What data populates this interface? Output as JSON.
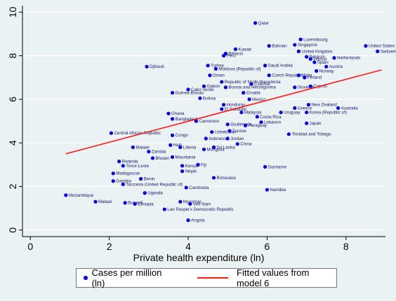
{
  "chart_data": {
    "type": "scatter",
    "xlabel": "Private health expenditure (ln)",
    "ylabel": "",
    "xlim": [
      -0.2,
      9.0
    ],
    "ylim": [
      -0.3,
      10.3
    ],
    "x_ticks": [
      0,
      2,
      4,
      6,
      8
    ],
    "y_ticks": [
      0,
      2,
      4,
      6,
      8,
      10
    ],
    "grid": "horizontal",
    "legend_position": "bottom",
    "fit_line": {
      "name": "Fitted values from model 6",
      "color": "#ff1a1a",
      "x": [
        0.9,
        8.9
      ],
      "y": [
        3.5,
        7.35
      ]
    },
    "series": [
      {
        "name": "Cases per million (ln)",
        "color": "#0000ee",
        "points": [
          {
            "label": "Qatar",
            "x": 5.7,
            "y": 9.5
          },
          {
            "label": "Luxembourg",
            "x": 6.85,
            "y": 8.75
          },
          {
            "label": "Singapore",
            "x": 6.7,
            "y": 8.5
          },
          {
            "label": "Bahrain",
            "x": 6.05,
            "y": 8.45
          },
          {
            "label": "United States",
            "x": 8.5,
            "y": 8.45
          },
          {
            "label": "Switzerland",
            "x": 8.8,
            "y": 8.2
          },
          {
            "label": "Kuwait",
            "x": 5.2,
            "y": 8.3
          },
          {
            "label": "United Kingdom",
            "x": 6.8,
            "y": 8.2
          },
          {
            "label": "Belarus",
            "x": 4.95,
            "y": 8.1
          },
          {
            "label": "Peru",
            "x": 4.9,
            "y": 8.0
          },
          {
            "label": "Netherlands",
            "x": 7.7,
            "y": 7.9
          },
          {
            "label": "France",
            "x": 7.1,
            "y": 7.85
          },
          {
            "label": "Belgium",
            "x": 7.0,
            "y": 7.95
          },
          {
            "label": "Spain",
            "x": 7.2,
            "y": 7.7
          },
          {
            "label": "Austria",
            "x": 7.5,
            "y": 7.5
          },
          {
            "label": "Norway",
            "x": 7.25,
            "y": 7.3
          },
          {
            "label": "Djibouti",
            "x": 2.95,
            "y": 7.5
          },
          {
            "label": "Turkey",
            "x": 4.5,
            "y": 7.55
          },
          {
            "label": "Saudi Arabia",
            "x": 5.95,
            "y": 7.55
          },
          {
            "label": "Moldova (Republic of)",
            "x": 4.7,
            "y": 7.4
          },
          {
            "label": "Malta",
            "x": 6.8,
            "y": 7.1
          },
          {
            "label": "Oman",
            "x": 4.55,
            "y": 7.1
          },
          {
            "label": "Finland",
            "x": 6.95,
            "y": 7.0
          },
          {
            "label": "Czech Republic",
            "x": 6.05,
            "y": 7.1
          },
          {
            "label": "Republic of North Macedonia",
            "x": 4.85,
            "y": 6.8
          },
          {
            "label": "Czechia",
            "x": 5.6,
            "y": 6.7
          },
          {
            "label": "Gabon",
            "x": 4.4,
            "y": 6.6
          },
          {
            "label": "Bosnia and Herzegovina",
            "x": 4.95,
            "y": 6.55
          },
          {
            "label": "Slovenia",
            "x": 6.7,
            "y": 6.55
          },
          {
            "label": "Cyprus",
            "x": 7.1,
            "y": 6.6
          },
          {
            "label": "Cabo Verde",
            "x": 4.0,
            "y": 6.45
          },
          {
            "label": "Guinea-Bissau",
            "x": 3.6,
            "y": 6.3
          },
          {
            "label": "Croatia",
            "x": 5.4,
            "y": 6.3
          },
          {
            "label": "Bolivia",
            "x": 4.3,
            "y": 6.05
          },
          {
            "label": "Mexico",
            "x": 5.55,
            "y": 6.0
          },
          {
            "label": "Honduras",
            "x": 4.9,
            "y": 5.75
          },
          {
            "label": "New Zealand",
            "x": 7.05,
            "y": 5.75
          },
          {
            "label": "El Salvador",
            "x": 4.85,
            "y": 5.55
          },
          {
            "label": "Australia",
            "x": 7.8,
            "y": 5.6
          },
          {
            "label": "Greece",
            "x": 6.7,
            "y": 5.6
          },
          {
            "label": "Malaysia",
            "x": 5.35,
            "y": 5.4
          },
          {
            "label": "Uruguay",
            "x": 6.35,
            "y": 5.4
          },
          {
            "label": "Korea (Republic of)",
            "x": 7.0,
            "y": 5.4
          },
          {
            "label": "Costa Rica",
            "x": 5.75,
            "y": 5.2
          },
          {
            "label": "Lebanon",
            "x": 5.85,
            "y": 4.95
          },
          {
            "label": "Japan",
            "x": 7.0,
            "y": 4.9
          },
          {
            "label": "Paraguay",
            "x": 5.45,
            "y": 4.8
          },
          {
            "label": "Guatemala",
            "x": 5.0,
            "y": 4.85
          },
          {
            "label": "Cameroon",
            "x": 4.2,
            "y": 5.0
          },
          {
            "label": "Bangladesh",
            "x": 3.6,
            "y": 5.1
          },
          {
            "label": "Ghana",
            "x": 3.5,
            "y": 5.35
          },
          {
            "label": "Trinidad and Tobago",
            "x": 6.55,
            "y": 4.4
          },
          {
            "label": "Central African Republic",
            "x": 2.05,
            "y": 4.45
          },
          {
            "label": "Congo",
            "x": 3.6,
            "y": 4.35
          },
          {
            "label": "Uzbekistan",
            "x": 4.6,
            "y": 4.5
          },
          {
            "label": "Tunisia",
            "x": 5.05,
            "y": 4.55
          },
          {
            "label": "Indonesia",
            "x": 4.45,
            "y": 4.2
          },
          {
            "label": "Jordan",
            "x": 5.0,
            "y": 4.2
          },
          {
            "label": "China",
            "x": 5.25,
            "y": 3.95
          },
          {
            "label": "Haiti",
            "x": 3.55,
            "y": 3.9
          },
          {
            "label": "Liberia",
            "x": 3.8,
            "y": 3.8
          },
          {
            "label": "Sri Lanka",
            "x": 4.65,
            "y": 3.8
          },
          {
            "label": "Malawi",
            "x": 2.6,
            "y": 3.8
          },
          {
            "label": "Zambia",
            "x": 3.0,
            "y": 3.6
          },
          {
            "label": "Mongolia",
            "x": 4.4,
            "y": 3.7
          },
          {
            "label": "Mauritania",
            "x": 3.6,
            "y": 3.35
          },
          {
            "label": "Bhutan",
            "x": 3.1,
            "y": 3.3
          },
          {
            "label": "Rwanda",
            "x": 2.25,
            "y": 3.15
          },
          {
            "label": "Timor-Leste",
            "x": 2.35,
            "y": 2.95
          },
          {
            "label": "Kenya",
            "x": 3.85,
            "y": 2.95
          },
          {
            "label": "Fiji",
            "x": 4.25,
            "y": 3.0
          },
          {
            "label": "Suriname",
            "x": 5.95,
            "y": 2.9
          },
          {
            "label": "Nepal",
            "x": 3.85,
            "y": 2.7
          },
          {
            "label": "Madagascar",
            "x": 2.1,
            "y": 2.6
          },
          {
            "label": "Benin",
            "x": 2.8,
            "y": 2.35
          },
          {
            "label": "Gambia",
            "x": 2.1,
            "y": 2.25
          },
          {
            "label": "Tanzania (United Republic of)",
            "x": 2.35,
            "y": 2.1
          },
          {
            "label": "Botswana",
            "x": 4.65,
            "y": 2.4
          },
          {
            "label": "Cambodia",
            "x": 3.95,
            "y": 1.95
          },
          {
            "label": "Namibia",
            "x": 6.0,
            "y": 1.85
          },
          {
            "label": "Uganda",
            "x": 2.9,
            "y": 1.7
          },
          {
            "label": "Mozambique",
            "x": 0.9,
            "y": 1.6
          },
          {
            "label": "Malawi",
            "x": 1.65,
            "y": 1.3
          },
          {
            "label": "Burundi",
            "x": 2.4,
            "y": 1.25
          },
          {
            "label": "Ethiopia",
            "x": 2.65,
            "y": 1.2
          },
          {
            "label": "Myanmar",
            "x": 3.8,
            "y": 1.3
          },
          {
            "label": "Viet Nam",
            "x": 4.05,
            "y": 1.2
          },
          {
            "label": "Lao People's Democratic Republic",
            "x": 3.4,
            "y": 0.95
          },
          {
            "label": "Angola",
            "x": 4.0,
            "y": 0.45
          }
        ]
      }
    ]
  }
}
